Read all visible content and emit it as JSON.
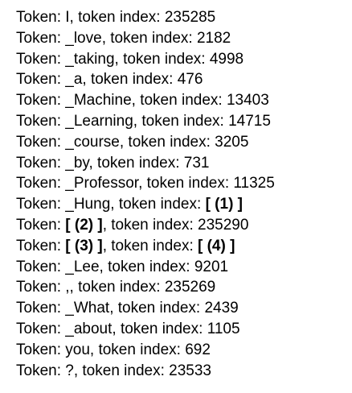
{
  "lines": [
    {
      "prefix": "Token: ",
      "token": "I",
      "mid": ", token index: ",
      "index": "235285"
    },
    {
      "prefix": "Token: ",
      "token": "_love",
      "mid": ", token index: ",
      "index": "2182"
    },
    {
      "prefix": "Token: ",
      "token": "_taking",
      "mid": ", token index: ",
      "index": "4998"
    },
    {
      "prefix": "Token: ",
      "token": "_a",
      "mid": ", token index: ",
      "index": "476"
    },
    {
      "prefix": "Token: ",
      "token": "_Machine",
      "mid": ", token index: ",
      "index": "13403"
    },
    {
      "prefix": "Token: ",
      "token": "_Learning",
      "mid": ", token index: ",
      "index": "14715"
    },
    {
      "prefix": "Token: ",
      "token": "_course",
      "mid": ", token index: ",
      "index": "3205"
    },
    {
      "prefix": "Token: ",
      "token": "_by",
      "mid": ", token index: ",
      "index": "731"
    },
    {
      "prefix": "Token: ",
      "token": "_Professor",
      "mid": ", token index: ",
      "index": "11325"
    },
    {
      "prefix": "Token: ",
      "token": "_Hung",
      "mid": ", token index: ",
      "index": "[ (1) ]"
    },
    {
      "prefix": "Token: ",
      "token": "[ (2) ]",
      "mid": ", token index: ",
      "index": "235290"
    },
    {
      "prefix": "Token: ",
      "token": "[ (3) ]",
      "mid": ", token index: ",
      "index": "[ (4) ]"
    },
    {
      "prefix": "Token: ",
      "token": "_Lee",
      "mid": ", token index: ",
      "index": "9201"
    },
    {
      "prefix": "Token: ",
      "token": ",",
      "mid": ", token index: ",
      "index": "235269"
    },
    {
      "prefix": "Token: ",
      "token": "_What",
      "mid": ", token index: ",
      "index": "2439"
    },
    {
      "prefix": "Token: ",
      "token": "_about",
      "mid": ", token index: ",
      "index": "1105"
    },
    {
      "prefix": "Token: ",
      "token": "you",
      "mid": ", token index: ",
      "index": "692"
    },
    {
      "prefix": "Token: ",
      "token": "?",
      "mid": ", token index: ",
      "index": "23533"
    }
  ]
}
